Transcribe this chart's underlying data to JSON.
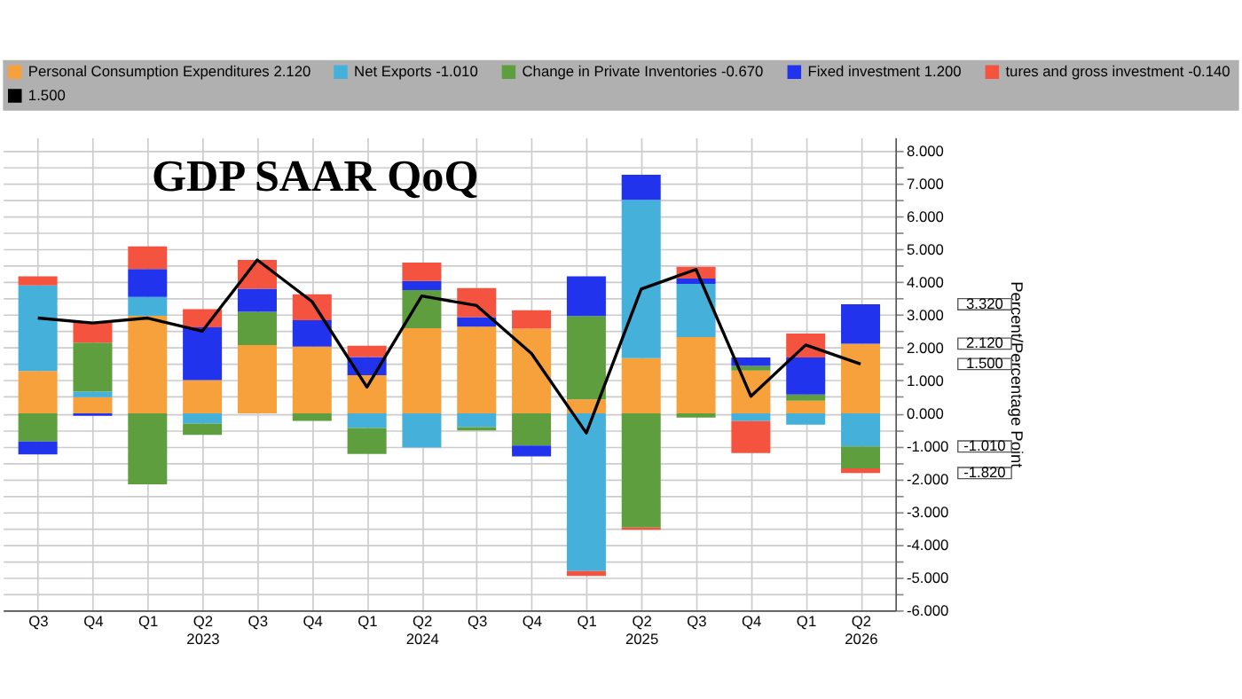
{
  "chart_data": {
    "type": "bar",
    "title": "GDP SAAR QoQ",
    "ylabel": "Percent/Percentage Point",
    "categories": [
      "Q3",
      "Q4",
      "Q1",
      "Q2\n2023",
      "Q3",
      "Q4",
      "Q1",
      "Q2\n2024",
      "Q3",
      "Q4",
      "Q1",
      "Q2\n2025",
      "Q3",
      "Q4",
      "Q1",
      "Q2\n2026"
    ],
    "stacked": true,
    "series": [
      {
        "name": "Personal Consumption Expenditures  2.120",
        "color": "#f7a13c",
        "values": [
          1.29,
          0.49,
          2.97,
          1.01,
          2.08,
          2.03,
          1.16,
          2.59,
          2.64,
          2.58,
          0.42,
          1.68,
          2.32,
          1.3,
          0.38,
          2.12
        ]
      },
      {
        "name": "Net Exports  -1.010",
        "color": "#45b1db",
        "values": [
          2.6,
          0.17,
          0.57,
          -0.31,
          null,
          null,
          -0.45,
          -1.04,
          -0.42,
          null,
          -4.8,
          4.82,
          1.62,
          -0.24,
          -0.35,
          -1.01
        ]
      },
      {
        "name": "Change in Private Inventories  -0.670",
        "color": "#5f9e3f",
        "values": [
          -0.86,
          1.49,
          -2.16,
          -0.35,
          1.01,
          -0.23,
          -0.79,
          1.16,
          -0.1,
          -0.98,
          2.54,
          -3.48,
          -0.13,
          0.14,
          0.19,
          -0.67
        ]
      },
      {
        "name": "Fixed investment  1.200",
        "color": "#2233ee",
        "values": [
          -0.39,
          -0.08,
          0.85,
          1.61,
          0.7,
          0.8,
          0.55,
          0.28,
          0.29,
          -0.33,
          1.21,
          0.76,
          0.16,
          0.26,
          1.13,
          1.2
        ]
      },
      {
        "name": "tures and gross investment  -0.140",
        "color": "#f4533f",
        "values": [
          0.28,
          0.61,
          0.69,
          0.55,
          0.88,
          0.79,
          0.35,
          0.56,
          0.88,
          0.56,
          -0.15,
          -0.07,
          0.36,
          -0.97,
          0.73,
          -0.14
        ]
      },
      {
        "name": "1.500",
        "type": "line",
        "color": "#000000",
        "values": [
          2.9,
          2.75,
          2.9,
          2.5,
          4.67,
          3.4,
          0.8,
          3.57,
          3.28,
          1.82,
          -0.6,
          3.78,
          4.38,
          0.52,
          2.08,
          1.5
        ]
      }
    ],
    "annotations": [
      "3.320",
      "2.120",
      "1.500",
      "-1.010",
      "-1.820"
    ],
    "ylim": [
      -6,
      8.4
    ],
    "yticks": [
      {
        "value": -6,
        "label": "-6.000"
      },
      {
        "value": -5.5,
        "label": null
      },
      {
        "value": -5,
        "label": "-5.000"
      },
      {
        "value": -4.5,
        "label": null
      },
      {
        "value": -4,
        "label": "-4.000"
      },
      {
        "value": -3.5,
        "label": null
      },
      {
        "value": -3,
        "label": "-3.000"
      },
      {
        "value": -2.5,
        "label": null
      },
      {
        "value": -2,
        "label": "-2.000"
      },
      {
        "value": -1.5,
        "label": null
      },
      {
        "value": -1,
        "label": "-1.000"
      },
      {
        "value": -0.5,
        "label": null
      },
      {
        "value": 0,
        "label": "0.000"
      },
      {
        "value": 0.5,
        "label": null
      },
      {
        "value": 1,
        "label": "1.000"
      },
      {
        "value": 1.5,
        "label": null
      },
      {
        "value": 2,
        "label": "2.000"
      },
      {
        "value": 2.5,
        "label": null
      },
      {
        "value": 3,
        "label": "3.000"
      },
      {
        "value": 3.5,
        "label": null
      },
      {
        "value": 4,
        "label": "4.000"
      },
      {
        "value": 4.5,
        "label": null
      },
      {
        "value": 5,
        "label": "5.000"
      },
      {
        "value": 5.5,
        "label": null
      },
      {
        "value": 6,
        "label": "6.000"
      },
      {
        "value": 6.5,
        "label": null
      },
      {
        "value": 7,
        "label": "7.000"
      },
      {
        "value": 7.5,
        "label": null
      },
      {
        "value": 8,
        "label": "8.000"
      }
    ],
    "grid": true,
    "legend": "top",
    "marker": "none",
    "line_style": "solid"
  }
}
